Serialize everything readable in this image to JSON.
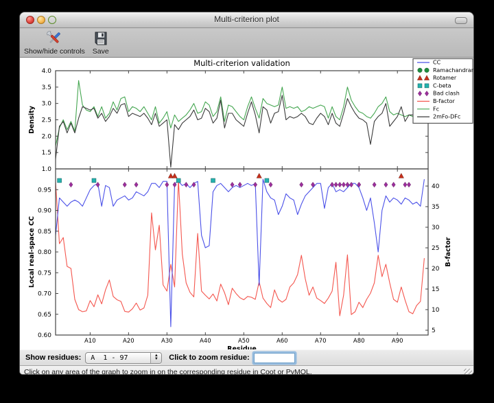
{
  "window": {
    "title": "Multi-criterion plot"
  },
  "toolbar": {
    "show_hide_label": "Show/hide controls",
    "save_label": "Save"
  },
  "controls": {
    "show_residues_label": "Show residues:",
    "residue_range_value": "A  1 - 97",
    "zoom_label": "Click to zoom residue:",
    "zoom_input_value": ""
  },
  "status_bar": {
    "text": "Click on any area of the graph to zoom in on the corresponding residue in Coot or PyMOL."
  },
  "ui_colors": {
    "accent_focus_ring": "#7dafdc",
    "titlebar_top": "#f2f2f2",
    "titlebar_bottom": "#bfbfbf"
  },
  "chart_data": [
    {
      "type": "line",
      "title": "Multi-criterion validation",
      "ylabel": "Density",
      "ylim": [
        1.0,
        4.0
      ],
      "yticks": [
        1.0,
        1.5,
        2.0,
        2.5,
        3.0,
        3.5,
        4.0
      ],
      "x_start": 1,
      "x_end": 97,
      "series": [
        {
          "name": "Fc",
          "color": "#44a650",
          "values": [
            1.7,
            2.25,
            2.5,
            2.2,
            2.45,
            2.15,
            3.7,
            2.95,
            2.8,
            2.75,
            2.9,
            2.6,
            2.9,
            2.55,
            2.7,
            3.05,
            2.8,
            3.15,
            3.2,
            2.75,
            2.9,
            2.85,
            2.75,
            2.9,
            2.7,
            2.5,
            2.9,
            2.4,
            2.55,
            2.75,
            2.25,
            2.65,
            2.45,
            2.55,
            2.65,
            2.8,
            3.0,
            2.7,
            2.75,
            3.05,
            2.95,
            2.6,
            2.75,
            3.2,
            2.45,
            2.95,
            2.9,
            2.75,
            2.6,
            2.5,
            2.9,
            3.2,
            2.85,
            2.55,
            3.15,
            3.0,
            2.95,
            2.9,
            2.95,
            3.5,
            2.85,
            2.9,
            2.85,
            2.9,
            2.75,
            2.8,
            2.9,
            2.85,
            2.9,
            2.95,
            2.9,
            2.55,
            2.9,
            2.6,
            2.5,
            2.9,
            3.5,
            3.1,
            2.9,
            2.75,
            2.7,
            2.6,
            2.55,
            2.7,
            2.9,
            3.0,
            3.2,
            2.75,
            2.65,
            2.7,
            2.65,
            2.6,
            2.65,
            2.6,
            2.65,
            3.0,
            3.6
          ]
        },
        {
          "name": "2mFo-DFc",
          "color": "#3a3a3a",
          "values": [
            1.3,
            2.3,
            2.45,
            2.1,
            2.4,
            2.1,
            2.55,
            2.9,
            2.85,
            2.8,
            2.85,
            2.55,
            2.7,
            2.45,
            2.6,
            2.85,
            2.7,
            2.95,
            3.0,
            2.6,
            2.7,
            2.65,
            2.6,
            2.7,
            2.55,
            2.35,
            2.7,
            2.3,
            2.4,
            2.5,
            1.05,
            2.35,
            2.2,
            2.4,
            2.5,
            2.6,
            2.8,
            2.5,
            2.55,
            2.85,
            2.75,
            2.4,
            2.55,
            3.1,
            2.25,
            2.7,
            2.7,
            2.5,
            2.4,
            2.3,
            2.7,
            3.05,
            2.65,
            2.1,
            2.9,
            2.8,
            2.4,
            2.7,
            2.75,
            3.25,
            2.5,
            2.6,
            2.55,
            2.6,
            2.7,
            2.6,
            2.4,
            2.35,
            2.55,
            2.7,
            2.6,
            2.35,
            2.7,
            2.4,
            2.3,
            2.7,
            3.15,
            2.9,
            2.7,
            2.55,
            2.5,
            2.4,
            1.75,
            2.45,
            2.6,
            2.7,
            3.0,
            2.3,
            2.45,
            2.6,
            2.9,
            2.45,
            2.65,
            2.65,
            2.4,
            2.75,
            3.3
          ]
        }
      ],
      "legend": {
        "position": "upper right",
        "entries": [
          {
            "label": "CC",
            "glyph": "line",
            "color": "#4a50e8"
          },
          {
            "label": "Ramachandran",
            "glyph": "circle",
            "color": "#1e8c3c"
          },
          {
            "label": "Rotamer",
            "glyph": "triangle",
            "color": "#c5301c"
          },
          {
            "label": "C-beta",
            "glyph": "square",
            "color": "#25b2ae"
          },
          {
            "label": "Bad clash",
            "glyph": "diamond",
            "color": "#9c2f9c"
          },
          {
            "label": "B-factor",
            "glyph": "line",
            "color": "#f4564e"
          },
          {
            "label": "Fc",
            "glyph": "line",
            "color": "#44a650"
          },
          {
            "label": "2mFo-DFc",
            "glyph": "line",
            "color": "#3a3a3a"
          }
        ]
      }
    },
    {
      "type": "line+scatter",
      "xlabel": "Residue",
      "ylabel_left": "Local real-space CC",
      "ylabel_right": "B-factor",
      "ylim_left": [
        0.6,
        1.0
      ],
      "yticks_left": [
        0.6,
        0.65,
        0.7,
        0.75,
        0.8,
        0.85,
        0.9,
        0.95
      ],
      "yticks_right": [
        5,
        10,
        15,
        20,
        25,
        30,
        35,
        40
      ],
      "xticks": [
        10,
        20,
        30,
        40,
        50,
        60,
        70,
        80,
        90
      ],
      "xtick_labels": [
        "A10",
        "A20",
        "A30",
        "A40",
        "A50",
        "A60",
        "A70",
        "A80",
        "A90"
      ],
      "x_start": 1,
      "x_end": 97,
      "series": [
        {
          "name": "CC",
          "axis": "left",
          "color": "#4a50e8",
          "values": [
            0.84,
            0.93,
            0.92,
            0.91,
            0.92,
            0.925,
            0.92,
            0.91,
            0.93,
            0.95,
            0.96,
            0.965,
            0.91,
            0.96,
            0.955,
            0.91,
            0.925,
            0.93,
            0.935,
            0.925,
            0.93,
            0.945,
            0.94,
            0.935,
            0.945,
            0.965,
            0.965,
            0.955,
            0.97,
            0.97,
            0.62,
            0.965,
            0.97,
            0.96,
            0.965,
            0.955,
            0.965,
            0.97,
            0.84,
            0.81,
            0.815,
            0.945,
            0.96,
            0.965,
            0.955,
            0.945,
            0.955,
            0.96,
            0.955,
            0.96,
            0.965,
            0.96,
            0.965,
            0.72,
            0.975,
            0.945,
            0.93,
            0.925,
            0.89,
            0.91,
            0.94,
            0.93,
            0.925,
            0.89,
            0.915,
            0.935,
            0.945,
            0.955,
            0.965,
            0.965,
            0.905,
            0.955,
            0.965,
            0.945,
            0.95,
            0.945,
            0.955,
            0.965,
            0.965,
            0.955,
            0.93,
            0.9,
            0.93,
            0.87,
            0.8,
            0.9,
            0.935,
            0.92,
            0.93,
            0.925,
            0.915,
            0.93,
            0.925,
            0.915,
            0.92,
            0.91,
            0.975
          ]
        },
        {
          "name": "B-factor",
          "axis": "right",
          "color": "#f4564e",
          "values": [
            41,
            26,
            27.5,
            20.5,
            20,
            12.5,
            10,
            9.5,
            9.7,
            12.2,
            10.7,
            13.6,
            11.4,
            14.8,
            17.2,
            13.2,
            12.4,
            12,
            9.6,
            9.4,
            10.2,
            11.6,
            9.9,
            10.4,
            13.5,
            33.5,
            24.5,
            30.5,
            16,
            14.5,
            21,
            15.5,
            41.5,
            23.5,
            16.5,
            14.2,
            13.1,
            28.5,
            14.5,
            13.5,
            12.6,
            13.8,
            12.1,
            16.2,
            14.1,
            11.2,
            15.2,
            13.9,
            12.9,
            12.4,
            13.2,
            13,
            12.5,
            16.8,
            12.8,
            11.5,
            10.5,
            14.8,
            12.5,
            11.8,
            12.5,
            15.5,
            16.5,
            18.5,
            23.2,
            17.5,
            13.5,
            15.5,
            12.8,
            12.2,
            11.5,
            12.8,
            14.5,
            21.5,
            8.5,
            13.5,
            23.3,
            8.8,
            9.5,
            11.8,
            10.5,
            12.5,
            14,
            16.5,
            23.2,
            18,
            21,
            16.5,
            12.5,
            11.8,
            15.5,
            12.3,
            9.5,
            9,
            11,
            12,
            22.5
          ]
        }
      ],
      "markers": {
        "marker_y_cc": {
          "rotamer": 0.983,
          "cbeta": 0.972,
          "bad_clash": 0.962
        },
        "ramachandran": {
          "color": "#1e8c3c",
          "residues": []
        },
        "rotamer": {
          "color": "#c5301c",
          "residues": [
            31,
            32,
            54,
            91
          ]
        },
        "cbeta": {
          "color": "#25b2ae",
          "residues": [
            2,
            11,
            33,
            42,
            56
          ]
        },
        "bad_clash": {
          "color": "#9c2f9c",
          "residues": [
            5,
            12,
            19,
            22,
            30,
            32,
            35,
            37,
            47,
            49,
            53,
            57,
            65,
            68,
            73,
            74,
            75,
            76,
            77,
            78,
            80,
            84,
            87,
            89,
            92,
            93
          ]
        }
      }
    }
  ]
}
